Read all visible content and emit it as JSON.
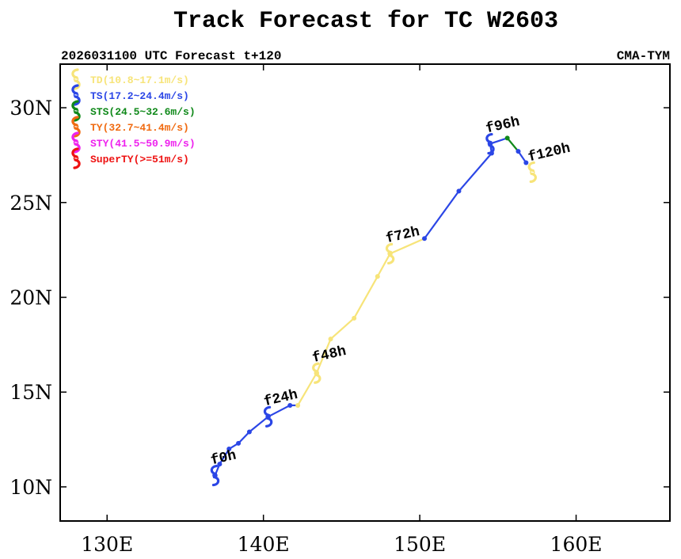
{
  "chart_data": {
    "type": "line",
    "title": "Track Forecast for TC W2603",
    "subtitle_left": "2026031100 UTC Forecast t+120",
    "subtitle_right": "CMA-TYM",
    "xlim": [
      127,
      166
    ],
    "ylim": [
      8.2,
      32.3
    ],
    "x_ticks": [
      {
        "value": 130,
        "label": "130E"
      },
      {
        "value": 140,
        "label": "140E"
      },
      {
        "value": 150,
        "label": "150E"
      },
      {
        "value": 160,
        "label": "160E"
      }
    ],
    "y_ticks": [
      {
        "value": 10,
        "label": "10N"
      },
      {
        "value": 15,
        "label": "15N"
      },
      {
        "value": 20,
        "label": "20N"
      },
      {
        "value": 25,
        "label": "25N"
      },
      {
        "value": 30,
        "label": "30N"
      }
    ],
    "legend": [
      {
        "label": "TD(10.8~17.1m/s)",
        "color": "#f7e479"
      },
      {
        "label": "TS(17.2~24.4m/s)",
        "color": "#2b46e6"
      },
      {
        "label": "STS(24.5~32.6m/s)",
        "color": "#10891a"
      },
      {
        "label": "TY(32.7~41.4m/s)",
        "color": "#f06a10"
      },
      {
        "label": "STY(41.5~50.9m/s)",
        "color": "#ee22ee"
      },
      {
        "label": "SuperTY(>=51m/s)",
        "color": "#ee1111"
      }
    ],
    "track": [
      {
        "lon": 136.9,
        "lat": 10.6,
        "cat": "TS"
      },
      {
        "lon": 137.2,
        "lat": 11.2,
        "cat": "TS"
      },
      {
        "lon": 137.8,
        "lat": 12.0,
        "cat": "TS"
      },
      {
        "lon": 138.4,
        "lat": 12.3,
        "cat": "TS"
      },
      {
        "lon": 139.1,
        "lat": 12.9,
        "cat": "TS"
      },
      {
        "lon": 140.3,
        "lat": 13.7,
        "cat": "TS"
      },
      {
        "lon": 141.7,
        "lat": 14.3,
        "cat": "TS"
      },
      {
        "lon": 142.2,
        "lat": 14.3,
        "cat": "TD"
      },
      {
        "lon": 143.4,
        "lat": 16.0,
        "cat": "TD"
      },
      {
        "lon": 144.3,
        "lat": 17.8,
        "cat": "TD"
      },
      {
        "lon": 145.8,
        "lat": 18.9,
        "cat": "TD"
      },
      {
        "lon": 147.3,
        "lat": 21.1,
        "cat": "TD"
      },
      {
        "lon": 148.1,
        "lat": 22.3,
        "cat": "TD"
      },
      {
        "lon": 150.3,
        "lat": 23.1,
        "cat": "TS"
      },
      {
        "lon": 152.5,
        "lat": 25.6,
        "cat": "TS"
      },
      {
        "lon": 154.6,
        "lat": 27.6,
        "cat": "TS"
      },
      {
        "lon": 154.5,
        "lat": 28.1,
        "cat": "TS"
      },
      {
        "lon": 155.6,
        "lat": 28.4,
        "cat": "STS"
      },
      {
        "lon": 156.3,
        "lat": 27.7,
        "cat": "TS"
      },
      {
        "lon": 156.8,
        "lat": 27.1,
        "cat": "TS"
      }
    ],
    "markers": [
      {
        "label": "f0h",
        "lon": 136.9,
        "lat": 10.6,
        "cat": "TS"
      },
      {
        "label": "f24h",
        "lon": 140.3,
        "lat": 13.7,
        "cat": "TS"
      },
      {
        "label": "f48h",
        "lon": 143.4,
        "lat": 16.0,
        "cat": "TD"
      },
      {
        "label": "f72h",
        "lon": 148.1,
        "lat": 22.3,
        "cat": "TD"
      },
      {
        "label": "f96h",
        "lon": 154.5,
        "lat": 28.1,
        "cat": "TS"
      },
      {
        "label": "f120h",
        "lon": 157.2,
        "lat": 26.6,
        "cat": "TD"
      }
    ]
  }
}
